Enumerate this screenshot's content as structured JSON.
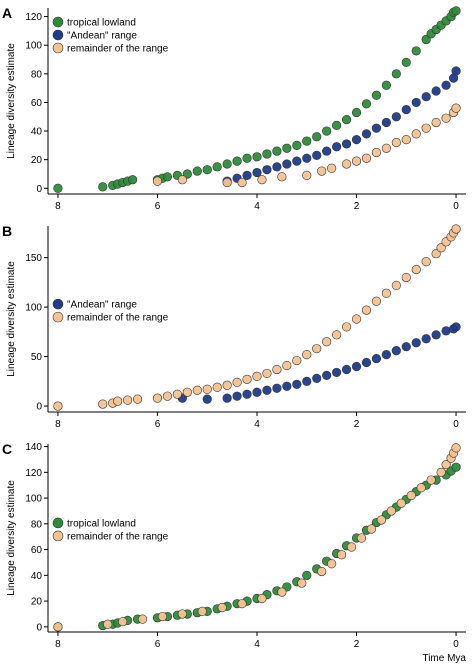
{
  "chart_data": [
    {
      "type": "scatter",
      "panel_label": "A",
      "ylabel": "Lineage diversity estimate",
      "xlabel": "",
      "xlim": [
        8.2,
        -0.2
      ],
      "ylim": [
        -4,
        126
      ],
      "x_ticks": [
        8,
        6,
        4,
        2,
        0
      ],
      "y_ticks": [
        0,
        20,
        40,
        60,
        80,
        100,
        120
      ],
      "legend_position": "top-left",
      "series": [
        {
          "name": "tropical lowland",
          "color": "#2e8b3a",
          "points": [
            [
              8,
              0
            ],
            [
              7.1,
              1
            ],
            [
              6.9,
              2
            ],
            [
              6.8,
              3
            ],
            [
              6.7,
              4
            ],
            [
              6.6,
              5
            ],
            [
              6.5,
              6
            ],
            [
              6.0,
              6
            ],
            [
              5.9,
              7
            ],
            [
              5.8,
              8
            ],
            [
              5.6,
              9
            ],
            [
              5.4,
              10
            ],
            [
              5.2,
              12
            ],
            [
              5.0,
              13
            ],
            [
              4.8,
              15
            ],
            [
              4.6,
              17
            ],
            [
              4.4,
              19
            ],
            [
              4.2,
              21
            ],
            [
              4.0,
              22
            ],
            [
              3.8,
              24
            ],
            [
              3.6,
              26
            ],
            [
              3.4,
              28
            ],
            [
              3.2,
              30
            ],
            [
              3.0,
              33
            ],
            [
              2.8,
              36
            ],
            [
              2.6,
              40
            ],
            [
              2.4,
              44
            ],
            [
              2.2,
              48
            ],
            [
              2.0,
              53
            ],
            [
              1.8,
              59
            ],
            [
              1.6,
              65
            ],
            [
              1.4,
              72
            ],
            [
              1.2,
              80
            ],
            [
              1.0,
              88
            ],
            [
              0.8,
              96
            ],
            [
              0.6,
              104
            ],
            [
              0.5,
              108
            ],
            [
              0.4,
              111
            ],
            [
              0.3,
              114
            ],
            [
              0.2,
              117
            ],
            [
              0.1,
              120
            ],
            [
              0.05,
              123
            ],
            [
              0,
              124
            ]
          ]
        },
        {
          "name": "\"Andean\" range",
          "color": "#1f3b8a",
          "points": [
            [
              4.6,
              5
            ],
            [
              4.4,
              7
            ],
            [
              4.2,
              9
            ],
            [
              4.0,
              11
            ],
            [
              3.8,
              13
            ],
            [
              3.6,
              15
            ],
            [
              3.4,
              17
            ],
            [
              3.2,
              19
            ],
            [
              3.0,
              21
            ],
            [
              2.8,
              23
            ],
            [
              2.6,
              26
            ],
            [
              2.4,
              29
            ],
            [
              2.2,
              31
            ],
            [
              2.0,
              34
            ],
            [
              1.8,
              38
            ],
            [
              1.6,
              42
            ],
            [
              1.4,
              46
            ],
            [
              1.2,
              50
            ],
            [
              1.0,
              55
            ],
            [
              0.8,
              60
            ],
            [
              0.6,
              64
            ],
            [
              0.4,
              68
            ],
            [
              0.2,
              72
            ],
            [
              0.05,
              77
            ],
            [
              0,
              82
            ]
          ]
        },
        {
          "name": "remainder of the range",
          "color": "#f5c291",
          "points": [
            [
              6.0,
              5
            ],
            [
              5.5,
              6
            ],
            [
              4.6,
              4
            ],
            [
              4.3,
              4
            ],
            [
              3.9,
              6
            ],
            [
              3.5,
              8
            ],
            [
              3.0,
              9
            ],
            [
              2.7,
              12
            ],
            [
              2.5,
              14
            ],
            [
              2.2,
              17
            ],
            [
              2.0,
              19
            ],
            [
              1.8,
              21
            ],
            [
              1.6,
              25
            ],
            [
              1.4,
              28
            ],
            [
              1.2,
              32
            ],
            [
              1.0,
              34
            ],
            [
              0.8,
              38
            ],
            [
              0.6,
              42
            ],
            [
              0.4,
              46
            ],
            [
              0.2,
              49
            ],
            [
              0.05,
              53
            ],
            [
              0,
              56
            ]
          ]
        }
      ]
    },
    {
      "type": "scatter",
      "panel_label": "B",
      "ylabel": "Lineage diversity estimate",
      "xlabel": "",
      "xlim": [
        8.2,
        -0.2
      ],
      "ylim": [
        -6,
        182
      ],
      "x_ticks": [
        8,
        6,
        4,
        2,
        0
      ],
      "y_ticks": [
        0,
        50,
        100,
        150
      ],
      "legend_position": "center-left",
      "series": [
        {
          "name": "\"Andean\" range",
          "color": "#1f3b8a",
          "points": [
            [
              5.5,
              8
            ],
            [
              5.0,
              7
            ],
            [
              4.6,
              8
            ],
            [
              4.4,
              10
            ],
            [
              4.2,
              12
            ],
            [
              4.0,
              14
            ],
            [
              3.8,
              16
            ],
            [
              3.6,
              18
            ],
            [
              3.4,
              20
            ],
            [
              3.2,
              22
            ],
            [
              3.0,
              25
            ],
            [
              2.8,
              28
            ],
            [
              2.6,
              31
            ],
            [
              2.4,
              34
            ],
            [
              2.2,
              37
            ],
            [
              2.0,
              40
            ],
            [
              1.8,
              44
            ],
            [
              1.6,
              48
            ],
            [
              1.4,
              52
            ],
            [
              1.2,
              56
            ],
            [
              1.0,
              60
            ],
            [
              0.8,
              64
            ],
            [
              0.6,
              68
            ],
            [
              0.4,
              72
            ],
            [
              0.2,
              76
            ],
            [
              0.05,
              78
            ],
            [
              0,
              80
            ]
          ]
        },
        {
          "name": "remainder of the range",
          "color": "#f5c291",
          "points": [
            [
              8,
              0
            ],
            [
              7.1,
              2
            ],
            [
              6.9,
              3
            ],
            [
              6.8,
              5
            ],
            [
              6.6,
              6
            ],
            [
              6.4,
              7
            ],
            [
              6.0,
              8
            ],
            [
              5.8,
              10
            ],
            [
              5.6,
              12
            ],
            [
              5.4,
              14
            ],
            [
              5.2,
              16
            ],
            [
              5.0,
              17
            ],
            [
              4.8,
              19
            ],
            [
              4.6,
              21
            ],
            [
              4.4,
              24
            ],
            [
              4.2,
              27
            ],
            [
              4.0,
              30
            ],
            [
              3.8,
              33
            ],
            [
              3.6,
              37
            ],
            [
              3.4,
              41
            ],
            [
              3.2,
              46
            ],
            [
              3.0,
              52
            ],
            [
              2.8,
              58
            ],
            [
              2.6,
              65
            ],
            [
              2.4,
              72
            ],
            [
              2.2,
              80
            ],
            [
              2.0,
              88
            ],
            [
              1.8,
              97
            ],
            [
              1.6,
              106
            ],
            [
              1.4,
              114
            ],
            [
              1.2,
              122
            ],
            [
              1.0,
              130
            ],
            [
              0.8,
              138
            ],
            [
              0.6,
              146
            ],
            [
              0.4,
              154
            ],
            [
              0.3,
              160
            ],
            [
              0.2,
              166
            ],
            [
              0.1,
              171
            ],
            [
              0.05,
              175
            ],
            [
              0,
              179
            ]
          ]
        }
      ]
    },
    {
      "type": "scatter",
      "panel_label": "C",
      "ylabel": "Lineage diversity estimate",
      "xlabel": "Time Mya",
      "xlim": [
        8.2,
        -0.2
      ],
      "ylim": [
        -4,
        142
      ],
      "x_ticks": [
        8,
        6,
        4,
        2,
        0
      ],
      "y_ticks": [
        0,
        20,
        40,
        60,
        80,
        100,
        120,
        140
      ],
      "legend_position": "center-left",
      "series": [
        {
          "name": "tropical lowland",
          "color": "#2e8b3a",
          "points": [
            [
              8,
              0
            ],
            [
              7.1,
              1
            ],
            [
              6.9,
              2
            ],
            [
              6.8,
              3
            ],
            [
              6.6,
              5
            ],
            [
              6.4,
              6
            ],
            [
              6.0,
              7
            ],
            [
              5.8,
              8
            ],
            [
              5.6,
              9
            ],
            [
              5.4,
              10
            ],
            [
              5.2,
              11
            ],
            [
              5.0,
              12
            ],
            [
              4.8,
              14
            ],
            [
              4.6,
              16
            ],
            [
              4.4,
              18
            ],
            [
              4.2,
              20
            ],
            [
              4.0,
              22
            ],
            [
              3.8,
              25
            ],
            [
              3.6,
              28
            ],
            [
              3.4,
              31
            ],
            [
              3.2,
              35
            ],
            [
              3.0,
              40
            ],
            [
              2.8,
              45
            ],
            [
              2.6,
              51
            ],
            [
              2.4,
              57
            ],
            [
              2.2,
              63
            ],
            [
              2.0,
              69
            ],
            [
              1.8,
              75
            ],
            [
              1.6,
              81
            ],
            [
              1.4,
              87
            ],
            [
              1.2,
              93
            ],
            [
              1.0,
              99
            ],
            [
              0.8,
              105
            ],
            [
              0.6,
              110
            ],
            [
              0.4,
              114
            ],
            [
              0.2,
              118
            ],
            [
              0.1,
              121
            ],
            [
              0,
              124
            ]
          ]
        },
        {
          "name": "remainder of the range",
          "color": "#f5c291",
          "points": [
            [
              8,
              0
            ],
            [
              7.0,
              2
            ],
            [
              6.7,
              4
            ],
            [
              6.3,
              6
            ],
            [
              5.9,
              8
            ],
            [
              5.5,
              10
            ],
            [
              5.1,
              12
            ],
            [
              4.7,
              15
            ],
            [
              4.3,
              18
            ],
            [
              3.9,
              22
            ],
            [
              3.5,
              27
            ],
            [
              3.1,
              34
            ],
            [
              2.7,
              43
            ],
            [
              2.5,
              49
            ],
            [
              2.3,
              56
            ],
            [
              2.1,
              62
            ],
            [
              1.9,
              69
            ],
            [
              1.7,
              76
            ],
            [
              1.5,
              83
            ],
            [
              1.3,
              90
            ],
            [
              1.1,
              96
            ],
            [
              0.9,
              102
            ],
            [
              0.7,
              108
            ],
            [
              0.5,
              114
            ],
            [
              0.3,
              120
            ],
            [
              0.2,
              126
            ],
            [
              0.1,
              131
            ],
            [
              0.05,
              135
            ],
            [
              0,
              139
            ]
          ]
        }
      ]
    }
  ]
}
